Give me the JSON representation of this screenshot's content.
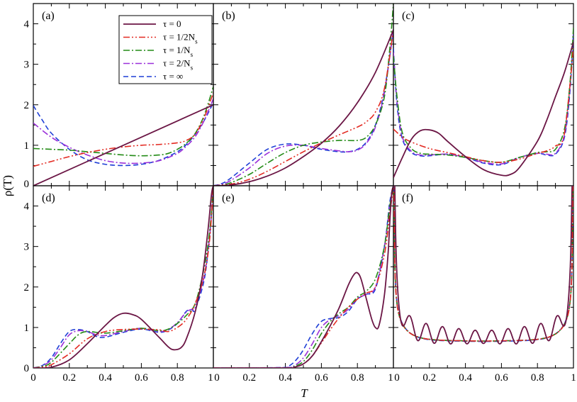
{
  "chart_data": {
    "type": "line",
    "xlabel": "T",
    "ylabel": "ρ(T)",
    "xlim": [
      0,
      1
    ],
    "ylim": [
      0,
      4.5
    ],
    "x_ticks": [
      0,
      0.2,
      0.4,
      0.6,
      0.8,
      1
    ],
    "x_tick_labels": [
      "0",
      "0.2",
      "0.4",
      "0.6",
      "0.8",
      "1"
    ],
    "y_ticks": [
      0,
      1,
      2,
      3,
      4
    ],
    "y_tick_labels": [
      "0",
      "1",
      "2",
      "3",
      "4"
    ],
    "grid": false,
    "legend": {
      "placement": "top-right of panel (a)",
      "entries": [
        {
          "key": "tau0",
          "label": "τ = 0",
          "color": "#6b1645",
          "dash": "solid"
        },
        {
          "key": "tau_half",
          "label": "τ = 1/2N",
          "sub": "s",
          "color": "#e32a22",
          "dash": "dashdotdot"
        },
        {
          "key": "tau_one",
          "label": "τ = 1/N",
          "sub": "s",
          "color": "#238b16",
          "dash": "dashdot"
        },
        {
          "key": "tau_two",
          "label": "τ = 2/N",
          "sub": "s",
          "color": "#9b30d9",
          "dash": "dashdot"
        },
        {
          "key": "tau_inf",
          "label": "τ = ∞",
          "color": "#1f3fd6",
          "dash": "dash"
        }
      ]
    },
    "panels": [
      {
        "label": "(a)",
        "series": {
          "tau0": {
            "x": [
              0,
              1
            ],
            "y": [
              0,
              2.0
            ]
          },
          "tau_half": {
            "x": [
              0,
              0.1,
              0.2,
              0.3,
              0.4,
              0.5,
              0.6,
              0.7,
              0.8,
              0.85,
              0.9,
              0.95,
              1.0
            ],
            "y": [
              0.48,
              0.6,
              0.72,
              0.82,
              0.9,
              0.96,
              1.0,
              1.02,
              1.06,
              1.12,
              1.28,
              1.7,
              2.3
            ]
          },
          "tau_one": {
            "x": [
              0,
              0.1,
              0.2,
              0.3,
              0.4,
              0.5,
              0.6,
              0.7,
              0.75,
              0.8,
              0.85,
              0.9,
              0.95,
              1.0
            ],
            "y": [
              0.92,
              0.9,
              0.88,
              0.84,
              0.8,
              0.76,
              0.74,
              0.76,
              0.8,
              0.9,
              1.05,
              1.3,
              1.75,
              2.45
            ]
          },
          "tau_two": {
            "x": [
              0,
              0.1,
              0.2,
              0.3,
              0.4,
              0.5,
              0.6,
              0.7,
              0.8,
              0.85,
              0.9,
              0.95,
              1.0
            ],
            "y": [
              1.55,
              1.2,
              0.95,
              0.76,
              0.62,
              0.56,
              0.56,
              0.62,
              0.8,
              0.98,
              1.22,
              1.62,
              2.15
            ]
          },
          "tau_inf": {
            "x": [
              0,
              0.05,
              0.1,
              0.2,
              0.3,
              0.4,
              0.5,
              0.6,
              0.7,
              0.8,
              0.85,
              0.9,
              0.95,
              1.0
            ],
            "y": [
              1.98,
              1.62,
              1.3,
              0.9,
              0.64,
              0.53,
              0.5,
              0.53,
              0.63,
              0.84,
              1.02,
              1.28,
              1.62,
              2.05
            ]
          }
        }
      },
      {
        "label": "(b)",
        "series": {
          "tau0": {
            "x": [
              0,
              0.1,
              0.2,
              0.3,
              0.4,
              0.5,
              0.6,
              0.7,
              0.8,
              0.9,
              1.0
            ],
            "y": [
              0,
              0.02,
              0.1,
              0.24,
              0.44,
              0.72,
              1.05,
              1.48,
              2.05,
              2.8,
              3.85
            ]
          },
          "tau_half": {
            "x": [
              0,
              0.1,
              0.2,
              0.3,
              0.4,
              0.5,
              0.6,
              0.7,
              0.8,
              0.85,
              0.9,
              0.95,
              1.0
            ],
            "y": [
              0,
              0.04,
              0.16,
              0.36,
              0.6,
              0.84,
              1.06,
              1.26,
              1.45,
              1.58,
              1.82,
              2.4,
              3.85
            ]
          },
          "tau_one": {
            "x": [
              0,
              0.05,
              0.1,
              0.2,
              0.3,
              0.4,
              0.5,
              0.6,
              0.7,
              0.8,
              0.85,
              0.9,
              0.95,
              0.98,
              1.0
            ],
            "y": [
              0,
              0.02,
              0.08,
              0.28,
              0.56,
              0.82,
              1.0,
              1.08,
              1.12,
              1.12,
              1.2,
              1.5,
              2.2,
              3.4,
              4.5
            ]
          },
          "tau_two": {
            "x": [
              0,
              0.05,
              0.1,
              0.2,
              0.3,
              0.4,
              0.5,
              0.6,
              0.7,
              0.75,
              0.8,
              0.85,
              0.9,
              0.95,
              1.0
            ],
            "y": [
              0,
              0.04,
              0.14,
              0.44,
              0.8,
              0.98,
              1.0,
              0.92,
              0.86,
              0.84,
              0.88,
              1.05,
              1.45,
              2.3,
              3.85
            ]
          },
          "tau_inf": {
            "x": [
              0,
              0.05,
              0.1,
              0.2,
              0.3,
              0.4,
              0.5,
              0.6,
              0.7,
              0.75,
              0.8,
              0.85,
              0.9,
              0.95,
              1.0
            ],
            "y": [
              0,
              0.06,
              0.2,
              0.56,
              0.9,
              1.03,
              1.0,
              0.9,
              0.84,
              0.84,
              0.9,
              1.08,
              1.5,
              2.35,
              3.85
            ]
          }
        }
      },
      {
        "label": "(c)",
        "series": {
          "tau0": {
            "x": [
              0,
              0.05,
              0.1,
              0.15,
              0.2,
              0.25,
              0.3,
              0.4,
              0.5,
              0.6,
              0.65,
              0.7,
              0.8,
              0.85,
              0.9,
              0.95,
              1.0
            ],
            "y": [
              0.2,
              0.7,
              1.15,
              1.36,
              1.38,
              1.3,
              1.1,
              0.72,
              0.4,
              0.26,
              0.28,
              0.45,
              1.1,
              1.6,
              2.2,
              2.8,
              3.55
            ]
          },
          "tau_half": {
            "x": [
              0,
              0.05,
              0.1,
              0.2,
              0.3,
              0.4,
              0.5,
              0.6,
              0.7,
              0.8,
              0.85,
              0.9,
              0.95,
              1.0
            ],
            "y": [
              1.4,
              1.2,
              1.08,
              0.92,
              0.82,
              0.72,
              0.62,
              0.58,
              0.66,
              0.8,
              0.86,
              0.98,
              1.3,
              3.4
            ]
          },
          "tau_one": {
            "x": [
              0,
              0.02,
              0.05,
              0.1,
              0.15,
              0.2,
              0.3,
              0.4,
              0.5,
              0.6,
              0.7,
              0.8,
              0.85,
              0.9,
              0.95,
              0.98,
              1.0
            ],
            "y": [
              3.2,
              2.2,
              1.3,
              0.92,
              0.8,
              0.78,
              0.76,
              0.7,
              0.62,
              0.58,
              0.7,
              0.82,
              0.84,
              0.9,
              1.4,
              2.5,
              3.9
            ]
          },
          "tau_two": {
            "x": [
              0,
              0.02,
              0.05,
              0.1,
              0.15,
              0.2,
              0.3,
              0.4,
              0.5,
              0.6,
              0.7,
              0.8,
              0.85,
              0.9,
              0.95,
              0.98,
              1.0
            ],
            "y": [
              3.3,
              2.1,
              1.2,
              0.85,
              0.76,
              0.76,
              0.78,
              0.7,
              0.58,
              0.54,
              0.7,
              0.8,
              0.78,
              0.8,
              1.25,
              2.4,
              3.8
            ]
          },
          "tau_inf": {
            "x": [
              0,
              0.02,
              0.05,
              0.1,
              0.15,
              0.2,
              0.3,
              0.4,
              0.5,
              0.6,
              0.7,
              0.8,
              0.85,
              0.9,
              0.95,
              0.98,
              1.0
            ],
            "y": [
              3.4,
              2.0,
              1.15,
              0.82,
              0.74,
              0.74,
              0.78,
              0.7,
              0.56,
              0.52,
              0.7,
              0.8,
              0.76,
              0.78,
              1.2,
              2.3,
              3.8
            ]
          }
        }
      },
      {
        "label": "(d)",
        "series": {
          "tau0": {
            "x": [
              0,
              0.1,
              0.2,
              0.3,
              0.4,
              0.45,
              0.5,
              0.55,
              0.6,
              0.7,
              0.75,
              0.78,
              0.82,
              0.85,
              0.9,
              0.94,
              0.97,
              0.99,
              1.0
            ],
            "y": [
              0,
              0.02,
              0.2,
              0.6,
              1.05,
              1.25,
              1.35,
              1.32,
              1.2,
              0.75,
              0.52,
              0.45,
              0.5,
              0.72,
              1.4,
              2.3,
              3.4,
              4.3,
              4.5
            ]
          },
          "tau_half": {
            "x": [
              0,
              0.05,
              0.1,
              0.2,
              0.3,
              0.4,
              0.5,
              0.6,
              0.7,
              0.75,
              0.8,
              0.85,
              0.9,
              0.95,
              0.98,
              1.0
            ],
            "y": [
              0,
              0.02,
              0.08,
              0.35,
              0.72,
              0.9,
              0.95,
              0.96,
              0.94,
              0.9,
              1.0,
              1.2,
              1.6,
              2.3,
              3.2,
              4.5
            ]
          },
          "tau_one": {
            "x": [
              0,
              0.05,
              0.1,
              0.2,
              0.25,
              0.3,
              0.4,
              0.5,
              0.6,
              0.7,
              0.75,
              0.8,
              0.85,
              0.9,
              0.95,
              0.98,
              1.0
            ],
            "y": [
              0,
              0.04,
              0.14,
              0.6,
              0.82,
              0.9,
              0.86,
              0.92,
              0.98,
              0.92,
              0.96,
              1.1,
              1.3,
              1.6,
              2.5,
              3.4,
              4.5
            ]
          },
          "tau_two": {
            "x": [
              0,
              0.05,
              0.1,
              0.15,
              0.2,
              0.25,
              0.3,
              0.35,
              0.4,
              0.5,
              0.6,
              0.7,
              0.75,
              0.8,
              0.85,
              0.88,
              0.9,
              0.95,
              0.98,
              1.0
            ],
            "y": [
              0,
              0.05,
              0.2,
              0.5,
              0.82,
              0.92,
              0.9,
              0.82,
              0.8,
              0.9,
              0.98,
              0.9,
              0.95,
              1.12,
              1.38,
              1.45,
              1.5,
              2.3,
              3.3,
              4.5
            ]
          },
          "tau_inf": {
            "x": [
              0,
              0.05,
              0.1,
              0.15,
              0.2,
              0.25,
              0.3,
              0.35,
              0.4,
              0.5,
              0.6,
              0.7,
              0.75,
              0.8,
              0.85,
              0.88,
              0.9,
              0.95,
              0.98,
              1.0
            ],
            "y": [
              0,
              0.06,
              0.25,
              0.6,
              0.9,
              0.95,
              0.9,
              0.78,
              0.76,
              0.88,
              0.96,
              0.88,
              0.94,
              1.1,
              1.4,
              1.44,
              1.45,
              2.2,
              3.3,
              4.5
            ]
          }
        }
      },
      {
        "label": "(e)",
        "series": {
          "tau0": {
            "x": [
              0,
              0.4,
              0.45,
              0.5,
              0.55,
              0.6,
              0.65,
              0.7,
              0.75,
              0.78,
              0.8,
              0.82,
              0.85,
              0.88,
              0.9,
              0.92,
              0.95,
              0.97,
              0.98,
              0.99,
              1.0
            ],
            "y": [
              0,
              0,
              0.02,
              0.1,
              0.3,
              0.65,
              1.05,
              1.5,
              2.05,
              2.3,
              2.35,
              2.2,
              1.7,
              1.2,
              1.0,
              1.05,
              1.8,
              2.8,
              3.6,
              4.3,
              4.5
            ]
          },
          "tau_half": {
            "x": [
              0,
              0.4,
              0.45,
              0.5,
              0.55,
              0.6,
              0.65,
              0.7,
              0.75,
              0.8,
              0.85,
              0.9,
              0.95,
              0.98,
              1.0
            ],
            "y": [
              0,
              0,
              0.02,
              0.1,
              0.3,
              0.62,
              0.95,
              1.25,
              1.5,
              1.7,
              1.85,
              2.0,
              2.8,
              3.8,
              4.5
            ]
          },
          "tau_one": {
            "x": [
              0,
              0.4,
              0.45,
              0.5,
              0.55,
              0.6,
              0.65,
              0.7,
              0.75,
              0.8,
              0.85,
              0.9,
              0.95,
              0.98,
              1.0
            ],
            "y": [
              0,
              0,
              0.04,
              0.16,
              0.45,
              0.85,
              1.15,
              1.35,
              1.5,
              1.75,
              1.9,
              2.2,
              3.0,
              4.0,
              4.5
            ]
          },
          "tau_two": {
            "x": [
              0,
              0.4,
              0.45,
              0.5,
              0.55,
              0.6,
              0.65,
              0.7,
              0.75,
              0.8,
              0.85,
              0.9,
              0.95,
              0.98,
              1.0
            ],
            "y": [
              0,
              0.01,
              0.06,
              0.25,
              0.6,
              1.0,
              1.2,
              1.3,
              1.45,
              1.72,
              1.82,
              2.0,
              3.0,
              4.0,
              4.5
            ]
          },
          "tau_inf": {
            "x": [
              0,
              0.38,
              0.42,
              0.46,
              0.5,
              0.55,
              0.6,
              0.65,
              0.7,
              0.75,
              0.8,
              0.85,
              0.9,
              0.95,
              0.98,
              1.0
            ],
            "y": [
              0,
              0.01,
              0.05,
              0.2,
              0.45,
              0.85,
              1.15,
              1.22,
              1.25,
              1.4,
              1.7,
              1.82,
              1.95,
              3.0,
              4.1,
              4.5
            ]
          }
        }
      },
      {
        "label": "(f)",
        "series": {
          "tau0": {
            "model": "oscillating",
            "base": 0.7,
            "amplitude": 0.28,
            "cycles": 11,
            "edge_peak": 4.5
          },
          "tau_half": {
            "model": "u-shape",
            "base": 0.64,
            "edge": 1.1,
            "edge_peak": 4.5
          },
          "tau_one": {
            "model": "u-shape",
            "base": 0.64,
            "edge": 1.12,
            "edge_peak": 4.5
          },
          "tau_two": {
            "model": "u-shape",
            "base": 0.64,
            "edge": 1.14,
            "edge_peak": 4.5
          },
          "tau_inf": {
            "model": "u-shape",
            "base": 0.63,
            "edge": 1.16,
            "edge_peak": 4.5
          }
        }
      }
    ]
  }
}
